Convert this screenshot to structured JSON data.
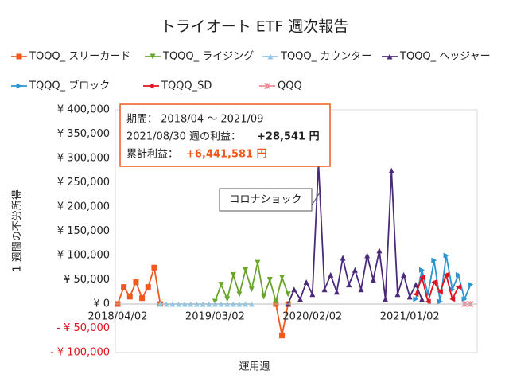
{
  "chart_data": {
    "type": "line",
    "title": "トライオート ETF 週次報告",
    "x_label": "運用週",
    "y_label": "1 週間の不労所得",
    "categories": [
      "2018/04/02",
      null,
      null,
      null,
      null,
      null,
      null,
      null,
      null,
      null,
      null,
      null,
      null,
      null,
      null,
      null,
      "2019/03/02",
      null,
      null,
      null,
      null,
      null,
      null,
      null,
      null,
      null,
      null,
      null,
      null,
      null,
      null,
      null,
      "2020/02/02",
      null,
      null,
      null,
      null,
      null,
      null,
      null,
      null,
      null,
      null,
      null,
      null,
      null,
      null,
      null,
      "2021/01/02",
      null,
      null,
      null,
      null,
      null,
      null,
      null,
      null,
      null,
      null
    ],
    "series": [
      {
        "name": "TQQQ_ スリーカード",
        "color": "#f0581e",
        "marker": "square",
        "values": [
          0,
          35000,
          15000,
          45000,
          12000,
          35000,
          75000,
          0,
          null,
          null,
          null,
          null,
          null,
          null,
          null,
          null,
          null,
          null,
          null,
          null,
          null,
          null,
          null,
          null,
          null,
          null,
          0,
          -65000,
          0,
          null,
          null,
          null,
          null,
          null,
          null,
          null,
          null,
          null,
          null,
          null,
          null,
          null,
          null,
          null,
          null,
          null,
          null,
          null,
          null,
          null,
          null,
          null,
          null,
          null,
          null,
          null,
          null,
          null,
          null
        ]
      },
      {
        "name": "TQQQ_ ライジング",
        "color": "#6aa62e",
        "marker": "triangle-down",
        "values": [
          null,
          null,
          null,
          null,
          null,
          null,
          null,
          null,
          null,
          null,
          null,
          null,
          null,
          null,
          null,
          null,
          5000,
          40000,
          10000,
          60000,
          20000,
          70000,
          30000,
          85000,
          15000,
          50000,
          5000,
          55000,
          20000,
          null,
          null,
          null,
          null,
          null,
          null,
          null,
          null,
          null,
          null,
          null,
          null,
          null,
          null,
          null,
          null,
          null,
          null,
          null,
          null,
          null,
          null,
          null,
          null,
          null,
          null,
          null,
          null,
          null,
          null
        ]
      },
      {
        "name": "TQQQ_ カウンター",
        "color": "#8ec8ea",
        "marker": "triangle-up",
        "values": [
          null,
          null,
          null,
          null,
          null,
          null,
          null,
          0,
          0,
          0,
          0,
          0,
          0,
          0,
          0,
          0,
          0,
          0,
          0,
          0,
          0,
          0,
          0,
          null,
          null,
          null,
          null,
          null,
          null,
          null,
          null,
          null,
          null,
          null,
          null,
          null,
          null,
          null,
          null,
          null,
          null,
          null,
          null,
          null,
          null,
          null,
          null,
          null,
          null,
          null,
          null,
          null,
          null,
          null,
          null,
          null,
          null,
          null,
          null
        ]
      },
      {
        "name": "TQQQ_ ヘッジャー",
        "color": "#4b2a7a",
        "marker": "triangle-up",
        "values": [
          null,
          null,
          null,
          null,
          null,
          null,
          null,
          null,
          null,
          null,
          null,
          null,
          null,
          null,
          null,
          null,
          null,
          null,
          null,
          null,
          null,
          null,
          null,
          null,
          null,
          null,
          null,
          null,
          0,
          30000,
          10000,
          45000,
          20000,
          290000,
          30000,
          60000,
          25000,
          95000,
          40000,
          70000,
          30000,
          100000,
          50000,
          110000,
          10000,
          275000,
          20000,
          60000,
          15000,
          40000,
          10000,
          null,
          null,
          null,
          null,
          null,
          null,
          null,
          null
        ]
      },
      {
        "name": "TQQQ_ ブロック",
        "color": "#2b95d0",
        "marker": "triangle-right",
        "values": [
          null,
          null,
          null,
          null,
          null,
          null,
          null,
          null,
          null,
          null,
          null,
          null,
          null,
          null,
          null,
          null,
          null,
          null,
          null,
          null,
          null,
          null,
          null,
          null,
          null,
          null,
          null,
          null,
          null,
          null,
          null,
          null,
          null,
          null,
          null,
          null,
          null,
          null,
          null,
          null,
          null,
          null,
          null,
          null,
          null,
          null,
          null,
          null,
          null,
          10000,
          70000,
          20000,
          90000,
          5000,
          100000,
          30000,
          60000,
          10000,
          40000
        ]
      },
      {
        "name": "TQQQ_SD",
        "color": "#e0141e",
        "marker": "triangle-left",
        "values": [
          null,
          null,
          null,
          null,
          null,
          null,
          null,
          null,
          null,
          null,
          null,
          null,
          null,
          null,
          null,
          null,
          null,
          null,
          null,
          null,
          null,
          null,
          null,
          null,
          null,
          null,
          null,
          null,
          null,
          null,
          null,
          null,
          null,
          null,
          null,
          null,
          null,
          null,
          null,
          null,
          null,
          null,
          null,
          null,
          null,
          null,
          null,
          null,
          null,
          20000,
          55000,
          5000,
          45000,
          25000,
          60000,
          10000,
          35000,
          null,
          null
        ]
      },
      {
        "name": "QQQ",
        "color": "#f08a9a",
        "marker": "star",
        "values": [
          null,
          null,
          null,
          null,
          null,
          null,
          null,
          null,
          null,
          null,
          null,
          null,
          null,
          null,
          null,
          null,
          null,
          null,
          null,
          null,
          null,
          null,
          null,
          null,
          null,
          null,
          null,
          null,
          null,
          null,
          null,
          null,
          null,
          null,
          null,
          null,
          null,
          null,
          null,
          null,
          null,
          null,
          null,
          null,
          null,
          null,
          null,
          null,
          null,
          null,
          null,
          null,
          null,
          null,
          null,
          null,
          null,
          0,
          0
        ]
      }
    ],
    "ylim": [
      -100000,
      400000
    ],
    "yticks": [
      {
        "value": 400000,
        "label": "¥ 400,000"
      },
      {
        "value": 350000,
        "label": "¥ 350,000"
      },
      {
        "value": 300000,
        "label": "¥ 300,000"
      },
      {
        "value": 250000,
        "label": "¥ 250,000"
      },
      {
        "value": 200000,
        "label": "¥ 200,000"
      },
      {
        "value": 150000,
        "label": "¥ 150,000"
      },
      {
        "value": 100000,
        "label": "¥ 100,000"
      },
      {
        "value": 50000,
        "label": "¥ 50,000"
      },
      {
        "value": 0,
        "label": "¥ 0"
      },
      {
        "value": -50000,
        "label": "- ¥ 50,000"
      },
      {
        "value": -100000,
        "label": "- ¥ 100,000"
      }
    ],
    "negative_label_color": "#e0141e",
    "grid": false,
    "summary": {
      "period": "期間： 2018/04 ～ 2021/09",
      "weekly_label": "2021/08/30 週の利益：",
      "weekly_value": "+28,541 円",
      "total_label": "累計利益：",
      "total_value": "+6,441,581 円"
    },
    "callout": "コロナショック"
  }
}
